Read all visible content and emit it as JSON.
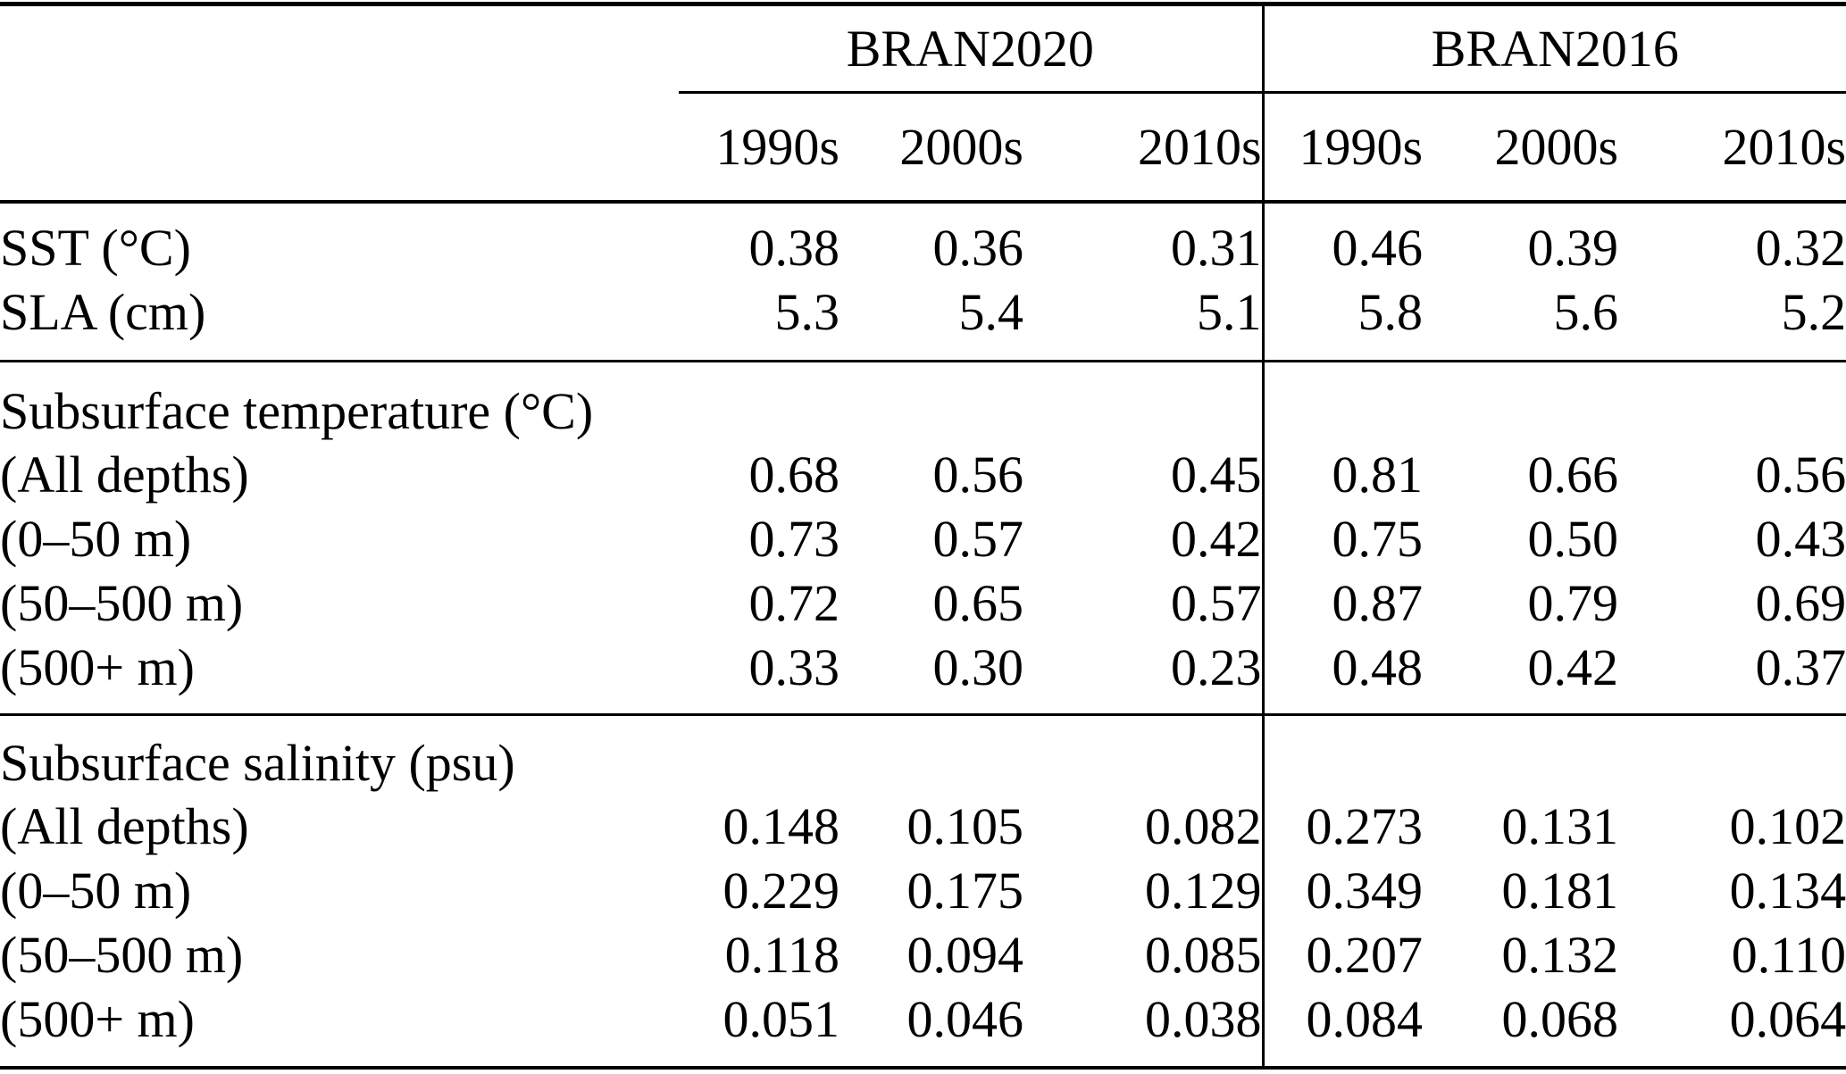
{
  "table": {
    "groups": [
      "BRAN2020",
      "BRAN2016"
    ],
    "decade_headers": [
      "1990s",
      "2000s",
      "2010s",
      "1990s",
      "2000s",
      "2010s"
    ],
    "text_color": "#000000",
    "rule_color": "#000000",
    "sections": [
      {
        "rows": [
          {
            "label": "SST (°C)",
            "values": [
              "0.38",
              "0.36",
              "0.31",
              "0.46",
              "0.39",
              "0.32"
            ]
          },
          {
            "label": "SLA (cm)",
            "values": [
              "5.3",
              "5.4",
              "5.1",
              "5.8",
              "5.6",
              "5.2"
            ]
          }
        ]
      },
      {
        "header": "Subsurface temperature (°C)",
        "rows": [
          {
            "label": "(All depths)",
            "values": [
              "0.68",
              "0.56",
              "0.45",
              "0.81",
              "0.66",
              "0.56"
            ]
          },
          {
            "label": "(0–50 m)",
            "values": [
              "0.73",
              "0.57",
              "0.42",
              "0.75",
              "0.50",
              "0.43"
            ]
          },
          {
            "label": "(50–500 m)",
            "values": [
              "0.72",
              "0.65",
              "0.57",
              "0.87",
              "0.79",
              "0.69"
            ]
          },
          {
            "label": "(500+ m)",
            "values": [
              "0.33",
              "0.30",
              "0.23",
              "0.48",
              "0.42",
              "0.37"
            ]
          }
        ]
      },
      {
        "header": "Subsurface salinity (psu)",
        "rows": [
          {
            "label": "(All depths)",
            "values": [
              "0.148",
              "0.105",
              "0.082",
              "0.273",
              "0.131",
              "0.102"
            ]
          },
          {
            "label": "(0–50 m)",
            "values": [
              "0.229",
              "0.175",
              "0.129",
              "0.349",
              "0.181",
              "0.134"
            ]
          },
          {
            "label": "(50–500 m)",
            "values": [
              "0.118",
              "0.094",
              "0.085",
              "0.207",
              "0.132",
              "0.110"
            ]
          },
          {
            "label": "(500+ m)",
            "values": [
              "0.051",
              "0.046",
              "0.038",
              "0.084",
              "0.068",
              "0.064"
            ]
          }
        ]
      }
    ]
  }
}
